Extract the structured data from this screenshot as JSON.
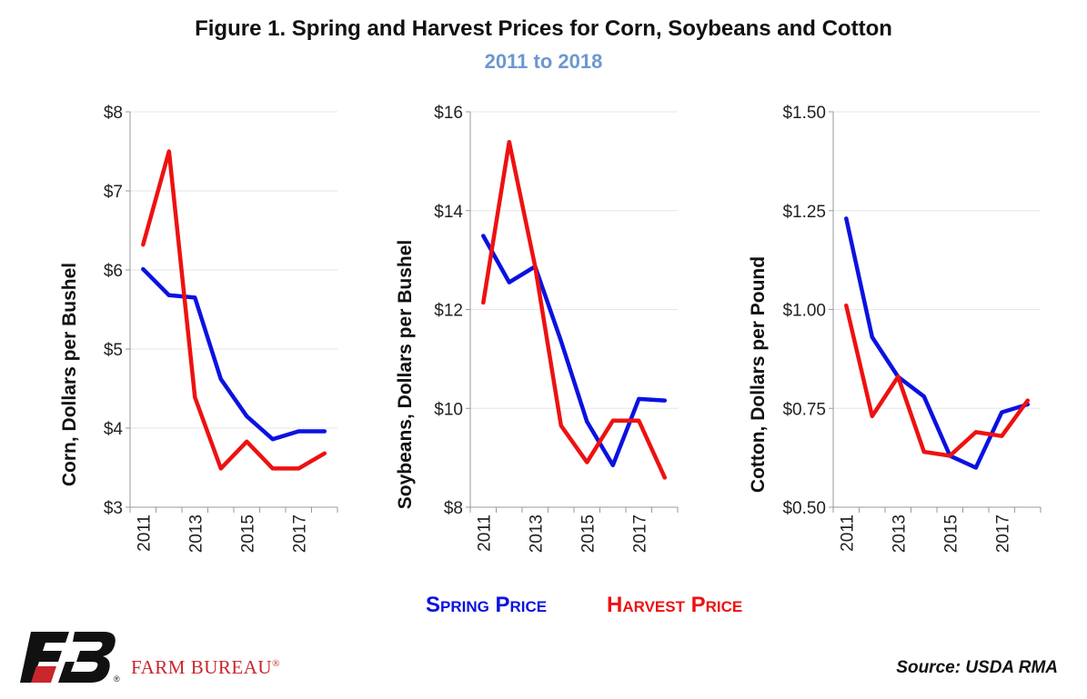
{
  "header": {
    "title": "Figure 1. Spring and Harvest Prices for Corn, Soybeans and Cotton",
    "subtitle": "2011 to 2018"
  },
  "legend": {
    "spring": "Spring Price",
    "harvest": "Harvest Price"
  },
  "colors": {
    "spring": "#0b12e0",
    "harvest": "#ee1111",
    "subtitle": "#6b98cf",
    "brand": "#c8262c"
  },
  "footer": {
    "org": "FARM BUREAU",
    "registered": "®",
    "source": "Source: USDA RMA"
  },
  "chart_data": [
    {
      "type": "line",
      "ylabel": "Corn, Dollars per Bushel",
      "x": [
        2011,
        2012,
        2013,
        2014,
        2015,
        2016,
        2017,
        2018
      ],
      "x_tick_labels": [
        "2011",
        "2013",
        "2015",
        "2017"
      ],
      "ylim": [
        3,
        8
      ],
      "y_ticks": [
        3,
        4,
        5,
        6,
        7,
        8
      ],
      "y_tick_labels": [
        "$3",
        "$4",
        "$5",
        "$6",
        "$7",
        "$8"
      ],
      "series": [
        {
          "key": "spring",
          "values": [
            6.01,
            5.68,
            5.65,
            4.62,
            4.15,
            3.86,
            3.96,
            3.96
          ]
        },
        {
          "key": "harvest",
          "values": [
            6.32,
            7.5,
            4.39,
            3.49,
            3.83,
            3.49,
            3.49,
            3.68
          ]
        }
      ]
    },
    {
      "type": "line",
      "ylabel": "Soybeans, Dollars per Bushel",
      "x": [
        2011,
        2012,
        2013,
        2014,
        2015,
        2016,
        2017,
        2018
      ],
      "x_tick_labels": [
        "2011",
        "2013",
        "2015",
        "2017"
      ],
      "ylim": [
        8,
        16
      ],
      "y_ticks": [
        8,
        10,
        12,
        14,
        16
      ],
      "y_tick_labels": [
        "$8",
        "$10",
        "$12",
        "$14",
        "$16"
      ],
      "series": [
        {
          "key": "spring",
          "values": [
            13.49,
            12.55,
            12.87,
            11.36,
            9.73,
            8.85,
            10.19,
            10.16
          ]
        },
        {
          "key": "harvest",
          "values": [
            12.14,
            15.39,
            12.87,
            9.65,
            8.91,
            9.75,
            9.75,
            8.6
          ]
        }
      ]
    },
    {
      "type": "line",
      "ylabel": "Cotton, Dollars per Pound",
      "x": [
        2011,
        2012,
        2013,
        2014,
        2015,
        2016,
        2017,
        2018
      ],
      "x_tick_labels": [
        "2011",
        "2013",
        "2015",
        "2017"
      ],
      "ylim": [
        0.5,
        1.5
      ],
      "y_ticks": [
        0.5,
        0.75,
        1.0,
        1.25,
        1.5
      ],
      "y_tick_labels": [
        "$0.50",
        "$0.75",
        "$1.00",
        "$1.25",
        "$1.50"
      ],
      "series": [
        {
          "key": "spring",
          "values": [
            1.23,
            0.93,
            0.83,
            0.78,
            0.63,
            0.6,
            0.74,
            0.76
          ]
        },
        {
          "key": "harvest",
          "values": [
            1.01,
            0.73,
            0.83,
            0.64,
            0.63,
            0.69,
            0.68,
            0.77
          ]
        }
      ]
    }
  ]
}
